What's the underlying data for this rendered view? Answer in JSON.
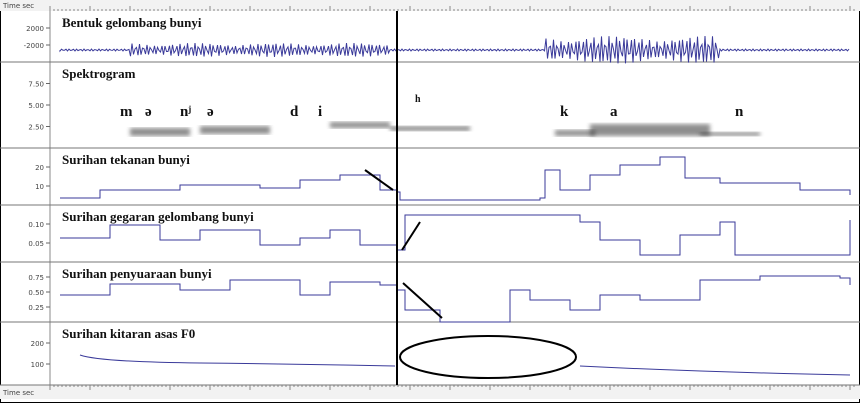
{
  "header": {
    "time_label": "Time sec"
  },
  "panels": [
    {
      "title": "Bentuk gelombang bunyi",
      "y_labels": [
        "2000",
        "-2000"
      ]
    },
    {
      "title": "Spektrogram",
      "y_labels": [
        "7.50",
        "5.00",
        "2.50"
      ]
    },
    {
      "title": "Surihan tekanan bunyi",
      "y_labels": [
        "20",
        "10"
      ]
    },
    {
      "title": "Surihan gegaran gelombang bunyi",
      "y_labels": [
        "0.10",
        "0.05"
      ]
    },
    {
      "title": "Surihan penyuaraan bunyi",
      "y_labels": [
        "0.75",
        "0.50",
        "0.25"
      ]
    },
    {
      "title": "Surihan kitaran asas F0",
      "y_labels": [
        "200",
        "100"
      ]
    }
  ],
  "segments": [
    "m",
    "ə",
    "nʲ",
    "ə",
    "d",
    "i",
    "h",
    "k",
    "a",
    "n"
  ],
  "footer": {
    "time_label": "Time sec"
  }
}
